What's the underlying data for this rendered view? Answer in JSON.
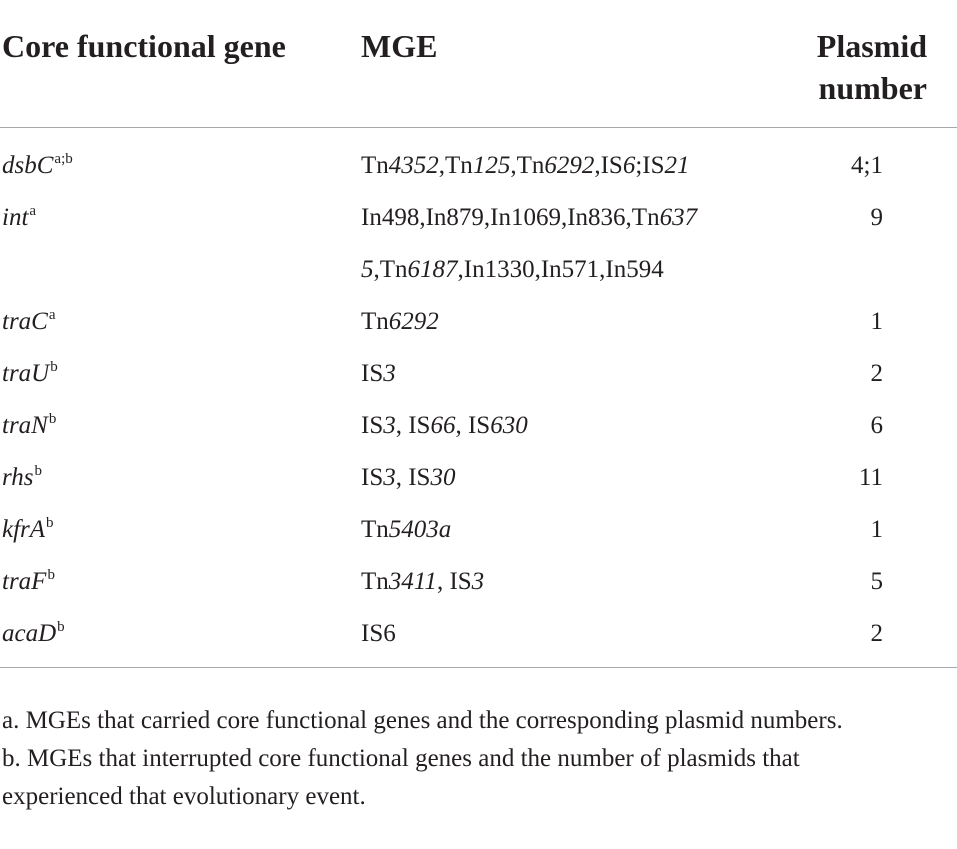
{
  "table": {
    "headers": {
      "gene": "Core functional gene",
      "mge": "MGE",
      "plasmid_line1": "Plasmid",
      "plasmid_line2": "number"
    },
    "rows": [
      {
        "gene": "dsbC",
        "sup": "a;b",
        "mge_lines": [
          [
            [
              "Tn",
              false
            ],
            [
              "4352",
              true
            ],
            [
              ",Tn",
              false
            ],
            [
              "125",
              true
            ],
            [
              ",Tn",
              false
            ],
            [
              "6292",
              true
            ],
            [
              ",IS",
              false
            ],
            [
              "6",
              true
            ],
            [
              ";IS",
              false
            ],
            [
              "21",
              true
            ]
          ]
        ],
        "number": "4;1"
      },
      {
        "gene": "int",
        "sup": "a",
        "mge_lines": [
          [
            [
              "In498,In879,In1069,In836,Tn",
              false
            ],
            [
              "637",
              true
            ]
          ],
          [
            [
              "5",
              true
            ],
            [
              ",Tn",
              false
            ],
            [
              "6187",
              true
            ],
            [
              ",In1330,In571,In594",
              false
            ]
          ]
        ],
        "number": "9"
      },
      {
        "gene": "traC",
        "sup": "a",
        "mge_lines": [
          [
            [
              "Tn",
              false
            ],
            [
              "6292",
              true
            ]
          ]
        ],
        "number": "1"
      },
      {
        "gene": "traU",
        "sup": "b",
        "mge_lines": [
          [
            [
              "IS",
              false
            ],
            [
              "3",
              true
            ]
          ]
        ],
        "number": "2"
      },
      {
        "gene": "traN",
        "sup": "b",
        "mge_lines": [
          [
            [
              "IS",
              false
            ],
            [
              "3",
              true
            ],
            [
              ", IS",
              false
            ],
            [
              "66",
              true
            ],
            [
              ", IS",
              false
            ],
            [
              "630",
              true
            ]
          ]
        ],
        "number": "6"
      },
      {
        "gene": "rhs",
        "sup": "b",
        "mge_lines": [
          [
            [
              "IS",
              false
            ],
            [
              "3",
              true
            ],
            [
              ", IS",
              false
            ],
            [
              "30",
              true
            ]
          ]
        ],
        "number": "11"
      },
      {
        "gene": "kfrA",
        "sup": "b",
        "mge_lines": [
          [
            [
              "Tn",
              false
            ],
            [
              "5403a",
              true
            ]
          ]
        ],
        "number": "1"
      },
      {
        "gene": "traF",
        "sup": "b",
        "mge_lines": [
          [
            [
              "Tn",
              false
            ],
            [
              "3411",
              true
            ],
            [
              ", IS",
              false
            ],
            [
              "3",
              true
            ]
          ]
        ],
        "number": "5"
      },
      {
        "gene": "acaD",
        "sup": "b",
        "mge_lines": [
          [
            [
              "IS6",
              false
            ]
          ]
        ],
        "number": "2"
      }
    ]
  },
  "footnotes": {
    "a": "a. MGEs that carried core functional genes and the corresponding plasmid numbers.",
    "b_line1": "b. MGEs that interrupted core functional genes and the number of plasmids that",
    "b_line2": "experienced that evolutionary event."
  }
}
